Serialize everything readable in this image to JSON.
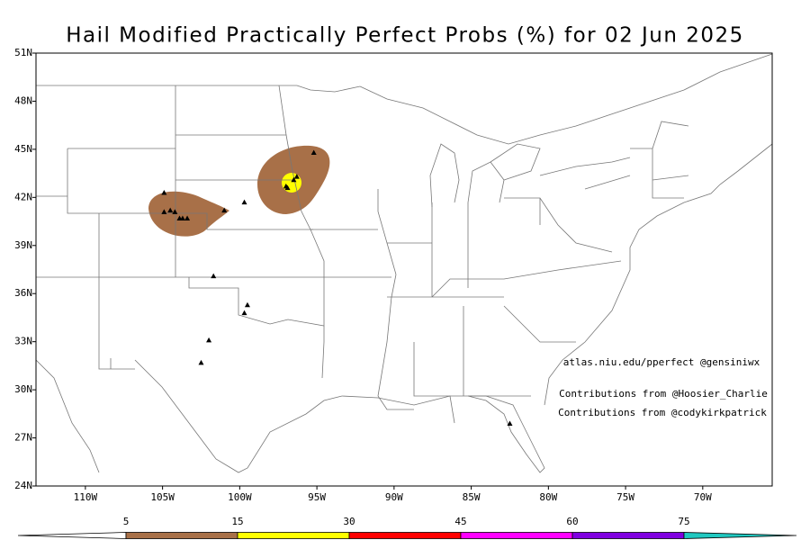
{
  "map": {
    "title": "Hail Modified Practically Perfect Probs (%) for 02 Jun 2025",
    "lonlim": [
      -113.2,
      -65.5
    ],
    "latlim": [
      24,
      51
    ],
    "lon_ticks": [
      {
        "value": -110,
        "label": "110W"
      },
      {
        "value": -105,
        "label": "105W"
      },
      {
        "value": -100,
        "label": "100W"
      },
      {
        "value": -95,
        "label": "95W"
      },
      {
        "value": -90,
        "label": "90W"
      },
      {
        "value": -85,
        "label": "85W"
      },
      {
        "value": -80,
        "label": "80W"
      },
      {
        "value": -75,
        "label": "75W"
      },
      {
        "value": -70,
        "label": "70W"
      }
    ],
    "lat_ticks": [
      {
        "value": 24,
        "label": "24N"
      },
      {
        "value": 27,
        "label": "27N"
      },
      {
        "value": 30,
        "label": "30N"
      },
      {
        "value": 33,
        "label": "33N"
      },
      {
        "value": 36,
        "label": "36N"
      },
      {
        "value": 39,
        "label": "39N"
      },
      {
        "value": 42,
        "label": "42N"
      },
      {
        "value": 45,
        "label": "45N"
      },
      {
        "value": 48,
        "label": "48N"
      },
      {
        "value": 51,
        "label": "51N"
      }
    ],
    "annotations": [
      "atlas.niu.edu/pperfect @gensiniwx",
      "Contributions from @Hoosier_Charlie",
      "Contributions from @codykirkpatrick"
    ],
    "colorbar": {
      "levels": [
        5,
        15,
        30,
        45,
        60,
        75
      ],
      "colors": [
        "#ffffff",
        "#a87048",
        "#ffff00",
        "#ff0000",
        "#ff00ff",
        "#8000e0",
        "#20c8c0"
      ]
    },
    "reports": {
      "lon": [
        -104.9,
        -104.9,
        -104.5,
        -104.2,
        -103.9,
        -103.7,
        -103.4,
        -101.0,
        -99.7,
        -101.7,
        -99.5,
        -99.7,
        -102.0,
        -102.5,
        -97.0,
        -96.9,
        -96.5,
        -96.3,
        -95.2,
        -82.5
      ],
      "lat": [
        42.3,
        41.1,
        41.2,
        41.1,
        40.7,
        40.7,
        40.7,
        41.2,
        41.7,
        37.1,
        35.3,
        34.8,
        33.1,
        31.7,
        42.7,
        42.6,
        43.1,
        43.3,
        44.8,
        27.9
      ]
    }
  }
}
